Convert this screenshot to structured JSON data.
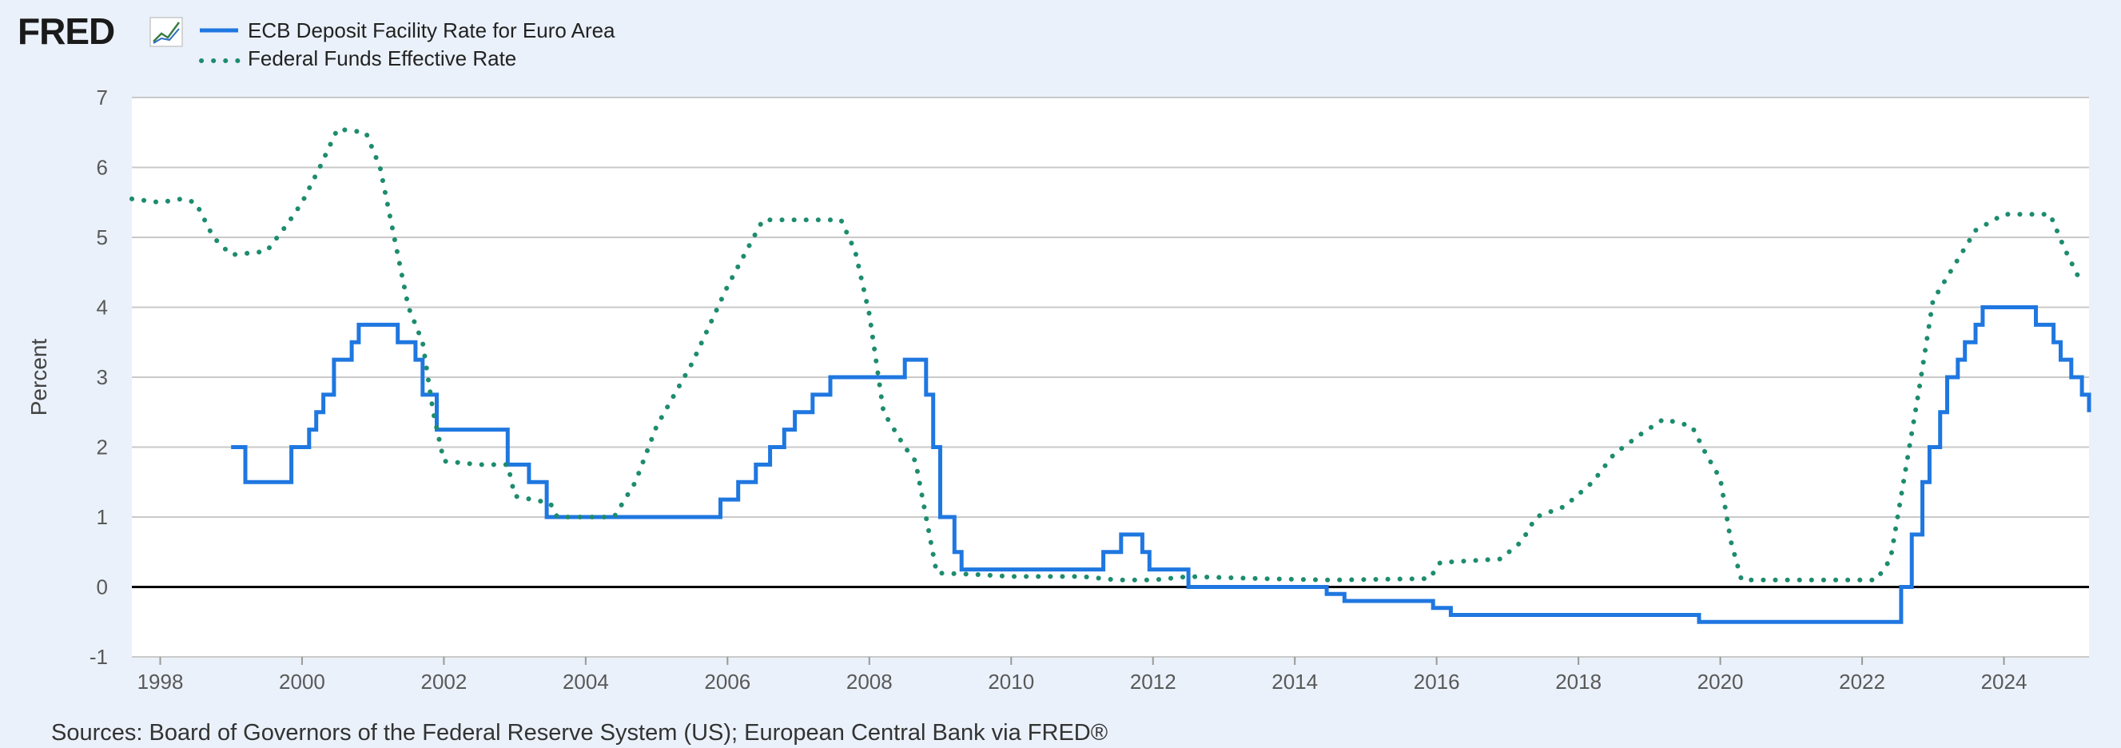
{
  "logo": {
    "text": "FRED"
  },
  "source": {
    "text": "Sources: Board of Governors of the Federal Reserve System (US); European Central Bank via FRED®"
  },
  "chart_data": {
    "type": "line",
    "title": "",
    "xlabel": "",
    "ylabel": "Percent",
    "ylim": [
      -1,
      7
    ],
    "yticks": [
      -1,
      0,
      1,
      2,
      3,
      4,
      5,
      6,
      7
    ],
    "xlim": [
      1997.6,
      2025.2
    ],
    "xticks": [
      1998,
      2000,
      2002,
      2004,
      2006,
      2008,
      2010,
      2012,
      2014,
      2016,
      2018,
      2020,
      2022,
      2024
    ],
    "grid": true,
    "legend_position": "top-left",
    "zero_line": true,
    "series": [
      {
        "name": "ECB Deposit Facility Rate for Euro Area",
        "color": "#1f77e0",
        "style": "solid-step",
        "points": [
          [
            1999.0,
            2.0
          ],
          [
            1999.2,
            1.5
          ],
          [
            1999.85,
            2.0
          ],
          [
            2000.1,
            2.25
          ],
          [
            2000.2,
            2.5
          ],
          [
            2000.3,
            2.75
          ],
          [
            2000.45,
            3.25
          ],
          [
            2000.7,
            3.5
          ],
          [
            2000.8,
            3.75
          ],
          [
            2001.35,
            3.5
          ],
          [
            2001.6,
            3.25
          ],
          [
            2001.7,
            2.75
          ],
          [
            2001.9,
            2.25
          ],
          [
            2002.9,
            1.75
          ],
          [
            2003.2,
            1.5
          ],
          [
            2003.45,
            1.0
          ],
          [
            2005.9,
            1.25
          ],
          [
            2006.15,
            1.5
          ],
          [
            2006.4,
            1.75
          ],
          [
            2006.6,
            2.0
          ],
          [
            2006.8,
            2.25
          ],
          [
            2006.95,
            2.5
          ],
          [
            2007.2,
            2.75
          ],
          [
            2007.45,
            3.0
          ],
          [
            2008.5,
            3.25
          ],
          [
            2008.8,
            2.75
          ],
          [
            2008.9,
            2.0
          ],
          [
            2009.0,
            1.0
          ],
          [
            2009.2,
            0.5
          ],
          [
            2009.3,
            0.25
          ],
          [
            2011.3,
            0.5
          ],
          [
            2011.55,
            0.75
          ],
          [
            2011.85,
            0.5
          ],
          [
            2011.95,
            0.25
          ],
          [
            2012.5,
            0.0
          ],
          [
            2014.45,
            -0.1
          ],
          [
            2014.7,
            -0.2
          ],
          [
            2015.95,
            -0.3
          ],
          [
            2016.2,
            -0.4
          ],
          [
            2019.7,
            -0.5
          ],
          [
            2022.55,
            0.0
          ],
          [
            2022.7,
            0.75
          ],
          [
            2022.85,
            1.5
          ],
          [
            2022.95,
            2.0
          ],
          [
            2023.1,
            2.5
          ],
          [
            2023.2,
            3.0
          ],
          [
            2023.35,
            3.25
          ],
          [
            2023.45,
            3.5
          ],
          [
            2023.6,
            3.75
          ],
          [
            2023.7,
            4.0
          ],
          [
            2024.45,
            3.75
          ],
          [
            2024.7,
            3.5
          ],
          [
            2024.8,
            3.25
          ],
          [
            2024.95,
            3.0
          ],
          [
            2025.1,
            2.75
          ],
          [
            2025.2,
            2.5
          ]
        ]
      },
      {
        "name": "Federal Funds Effective Rate",
        "color": "#1d8c6e",
        "style": "dotted",
        "points": [
          [
            1997.6,
            5.55
          ],
          [
            1998.0,
            5.5
          ],
          [
            1998.3,
            5.55
          ],
          [
            1998.5,
            5.5
          ],
          [
            1998.75,
            5.0
          ],
          [
            1999.0,
            4.75
          ],
          [
            1999.5,
            4.8
          ],
          [
            1999.8,
            5.2
          ],
          [
            2000.0,
            5.5
          ],
          [
            2000.25,
            6.0
          ],
          [
            2000.5,
            6.55
          ],
          [
            2000.9,
            6.5
          ],
          [
            2001.1,
            6.0
          ],
          [
            2001.3,
            5.0
          ],
          [
            2001.5,
            4.0
          ],
          [
            2001.7,
            3.5
          ],
          [
            2001.85,
            2.5
          ],
          [
            2002.0,
            1.8
          ],
          [
            2002.5,
            1.75
          ],
          [
            2002.9,
            1.75
          ],
          [
            2003.0,
            1.3
          ],
          [
            2003.5,
            1.2
          ],
          [
            2003.6,
            1.0
          ],
          [
            2004.4,
            1.0
          ],
          [
            2004.7,
            1.5
          ],
          [
            2005.0,
            2.3
          ],
          [
            2005.5,
            3.2
          ],
          [
            2006.0,
            4.3
          ],
          [
            2006.5,
            5.25
          ],
          [
            2007.6,
            5.25
          ],
          [
            2007.8,
            4.8
          ],
          [
            2008.0,
            3.9
          ],
          [
            2008.2,
            2.5
          ],
          [
            2008.5,
            2.0
          ],
          [
            2008.65,
            1.8
          ],
          [
            2008.8,
            1.0
          ],
          [
            2008.95,
            0.2
          ],
          [
            2009.5,
            0.18
          ],
          [
            2010.0,
            0.15
          ],
          [
            2011.0,
            0.15
          ],
          [
            2011.5,
            0.1
          ],
          [
            2012.0,
            0.1
          ],
          [
            2012.5,
            0.15
          ],
          [
            2013.5,
            0.12
          ],
          [
            2014.5,
            0.1
          ],
          [
            2015.9,
            0.12
          ],
          [
            2016.05,
            0.35
          ],
          [
            2016.9,
            0.4
          ],
          [
            2017.2,
            0.65
          ],
          [
            2017.4,
            1.0
          ],
          [
            2017.8,
            1.15
          ],
          [
            2018.2,
            1.5
          ],
          [
            2018.5,
            1.9
          ],
          [
            2018.9,
            2.2
          ],
          [
            2019.2,
            2.4
          ],
          [
            2019.6,
            2.3
          ],
          [
            2019.8,
            1.9
          ],
          [
            2020.0,
            1.55
          ],
          [
            2020.15,
            0.65
          ],
          [
            2020.3,
            0.1
          ],
          [
            2021.5,
            0.1
          ],
          [
            2022.2,
            0.1
          ],
          [
            2022.4,
            0.4
          ],
          [
            2022.6,
            1.6
          ],
          [
            2022.8,
            2.8
          ],
          [
            2023.0,
            4.1
          ],
          [
            2023.3,
            4.6
          ],
          [
            2023.6,
            5.1
          ],
          [
            2024.0,
            5.33
          ],
          [
            2024.65,
            5.33
          ],
          [
            2024.85,
            4.85
          ],
          [
            2025.1,
            4.33
          ]
        ]
      }
    ]
  }
}
